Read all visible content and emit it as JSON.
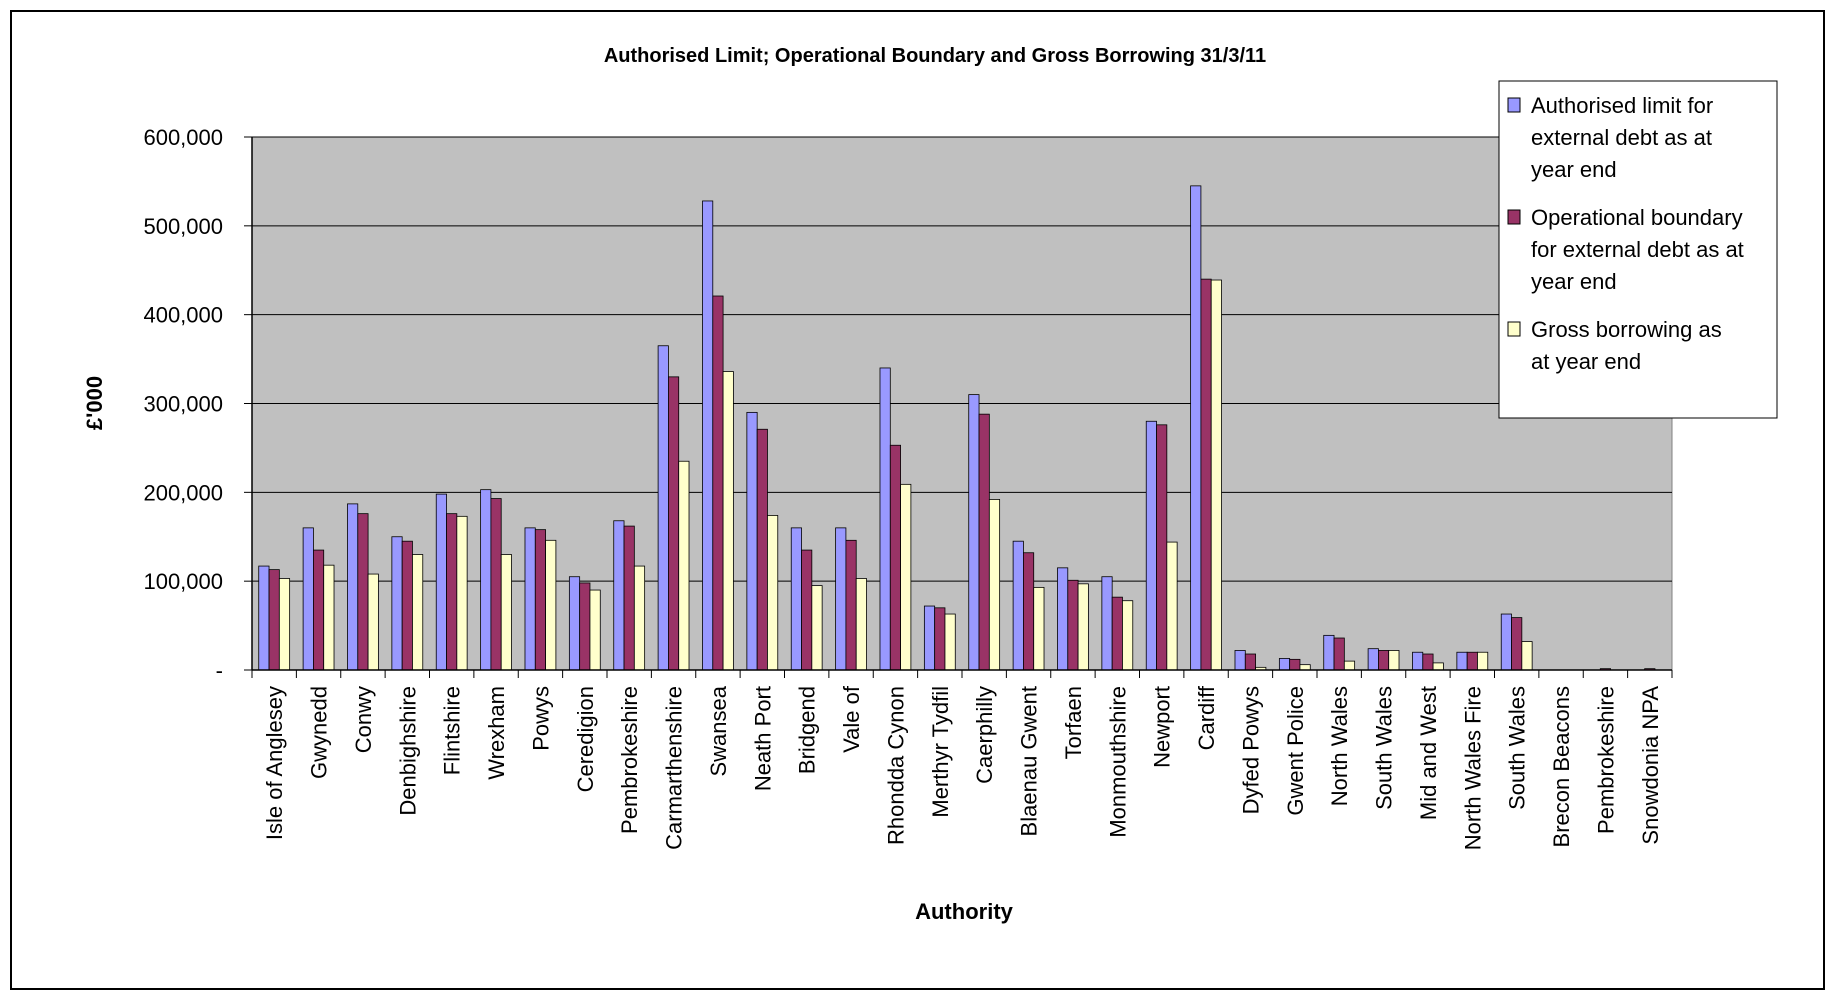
{
  "chart_data": {
    "type": "bar",
    "title": "Authorised Limit; Operational Boundary and Gross Borrowing 31/3/11",
    "xlabel": "Authority",
    "ylabel": "£'000",
    "ylim": [
      0,
      600000
    ],
    "yticks": [
      0,
      100000,
      200000,
      300000,
      400000,
      500000,
      600000
    ],
    "ytick_labels": [
      "-",
      "100,000",
      "200,000",
      "300,000",
      "400,000",
      "500,000",
      "600,000"
    ],
    "grid": true,
    "legend_position": "top-right",
    "plot_background": "#C0C0C0",
    "categories": [
      "Isle of Anglesey",
      "Gwynedd",
      "Conwy",
      "Denbighshire",
      "Flintshire",
      "Wrexham",
      "Powys",
      "Ceredigion",
      "Pembrokeshire",
      "Carmarthenshire",
      "Swansea",
      "Neath Port",
      "Bridgend",
      "Vale of",
      "Rhondda Cynon",
      "Merthyr Tydfil",
      "Caerphilly",
      "Blaenau Gwent",
      "Torfaen",
      "Monmouthshire",
      "Newport",
      "Cardiff",
      "Dyfed Powys",
      "Gwent Police",
      "North Wales",
      "South Wales",
      "Mid and West",
      "North Wales Fire",
      "South Wales",
      "Brecon Beacons",
      "Pembrokeshire",
      "Snowdonia NPA"
    ],
    "series": [
      {
        "name": "Authorised limit for external debt as at year end",
        "legend_lines": [
          "Authorised limit for",
          "external debt as at",
          "year end"
        ],
        "color": "#9999FF",
        "values": [
          117000,
          160000,
          187000,
          150000,
          198000,
          203000,
          160000,
          105000,
          168000,
          365000,
          528000,
          290000,
          160000,
          160000,
          340000,
          72000,
          310000,
          145000,
          115000,
          105000,
          280000,
          545000,
          22000,
          13000,
          39000,
          24000,
          20000,
          20000,
          63000,
          0,
          0,
          0
        ]
      },
      {
        "name": "Operational boundary for external debt as at year end",
        "legend_lines": [
          "Operational boundary",
          "for external debt as at",
          "year end"
        ],
        "color": "#993366",
        "values": [
          113000,
          135000,
          176000,
          145000,
          176000,
          193000,
          158000,
          98000,
          162000,
          330000,
          421000,
          271000,
          135000,
          146000,
          253000,
          70000,
          288000,
          132000,
          101000,
          82000,
          276000,
          440000,
          18000,
          12000,
          36000,
          22000,
          18000,
          20000,
          59000,
          0,
          1500,
          1500
        ]
      },
      {
        "name": "Gross borrowing as at year end",
        "legend_lines": [
          "Gross borrowing as",
          "at year end"
        ],
        "color": "#FFFFCC",
        "values": [
          103000,
          118000,
          108000,
          130000,
          173000,
          130000,
          146000,
          90000,
          117000,
          235000,
          336000,
          174000,
          95000,
          103000,
          209000,
          63000,
          192000,
          93000,
          97000,
          78000,
          144000,
          439000,
          3000,
          6000,
          10000,
          22000,
          8000,
          20000,
          32000,
          0,
          0,
          0
        ]
      }
    ]
  }
}
